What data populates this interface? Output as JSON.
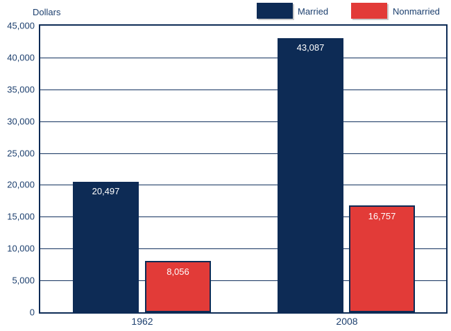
{
  "chart_data": {
    "type": "bar",
    "title": "",
    "unit_label": "Dollars",
    "xlabel": "",
    "ylabel": "Dollars",
    "categories": [
      "1962",
      "2008"
    ],
    "series": [
      {
        "name": "Married",
        "color": "#0d2b55",
        "values": [
          20497,
          43087
        ],
        "value_labels": [
          "20,497",
          "43,087"
        ]
      },
      {
        "name": "Nonmarried",
        "color": "#e23b38",
        "values": [
          8056,
          16757
        ],
        "value_labels": [
          "8,056",
          "16,757"
        ]
      }
    ],
    "ylim": [
      0,
      45000
    ],
    "ytick_step": 5000,
    "ytick_labels": [
      "45,000",
      "40,000",
      "35,000",
      "30,000",
      "25,000",
      "20,000",
      "15,000",
      "10,000",
      "5,000",
      "0"
    ],
    "grid": true,
    "legend_position": "top-right",
    "colors": {
      "axis_frame": "#0d2b55",
      "gridline": "#12315e",
      "tick_text": "#1c3f6e",
      "bar_value_text": "#ffffff",
      "nonmarried_bar_border": "#0d2b55"
    }
  }
}
